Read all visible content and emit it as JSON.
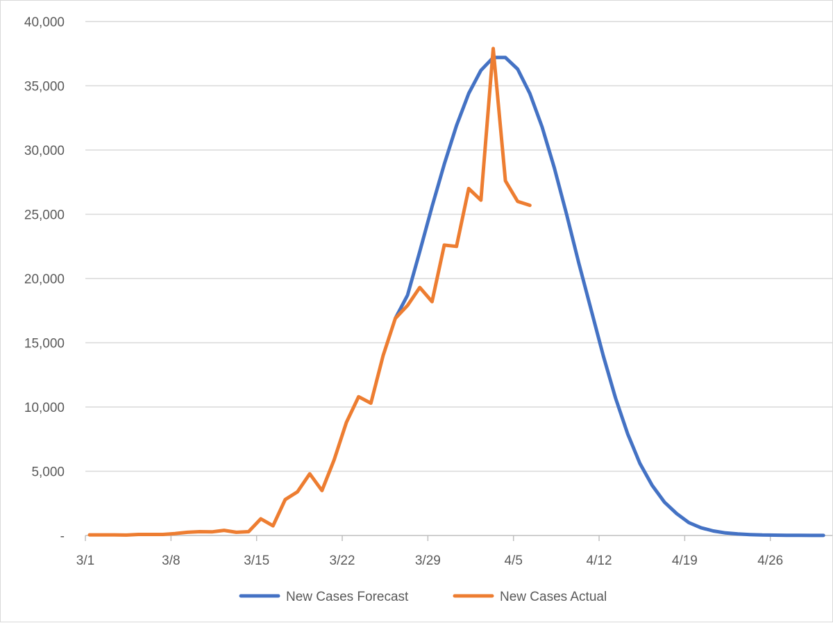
{
  "chart_data": {
    "type": "line",
    "title": "",
    "xlabel": "",
    "ylabel": "",
    "x_start": "3/1",
    "x_tick_labels": [
      "3/1",
      "3/8",
      "3/15",
      "3/22",
      "3/29",
      "4/5",
      "4/12",
      "4/19",
      "4/26"
    ],
    "y_tick_labels": [
      "-",
      "5,000",
      "10,000",
      "15,000",
      "20,000",
      "25,000",
      "30,000",
      "35,000",
      "40,000"
    ],
    "y_ticks": [
      0,
      5000,
      10000,
      15000,
      20000,
      25000,
      30000,
      35000,
      40000
    ],
    "ylim": [
      0,
      40000
    ],
    "grid": "horizontal",
    "legend_position": "bottom",
    "series": [
      {
        "name": "New Cases Forecast",
        "color": "#4472c4",
        "x": [
          "3/26",
          "3/27",
          "3/28",
          "3/29",
          "3/30",
          "3/31",
          "4/1",
          "4/2",
          "4/3",
          "4/4",
          "4/5",
          "4/6",
          "4/7",
          "4/8",
          "4/9",
          "4/10",
          "4/11",
          "4/12",
          "4/13",
          "4/14",
          "4/15",
          "4/16",
          "4/17",
          "4/18",
          "4/19",
          "4/20",
          "4/21",
          "4/22",
          "4/23",
          "4/24",
          "4/25",
          "4/26",
          "4/27",
          "4/28",
          "4/29",
          "4/30"
        ],
        "values": [
          16900,
          18700,
          22100,
          25600,
          28900,
          31900,
          34400,
          36200,
          37200,
          37200,
          36300,
          34400,
          31800,
          28600,
          25000,
          21200,
          17600,
          14000,
          10700,
          7900,
          5600,
          3900,
          2600,
          1700,
          1000,
          600,
          350,
          200,
          120,
          70,
          40,
          25,
          15,
          10,
          5,
          5
        ]
      },
      {
        "name": "New Cases Actual",
        "color": "#ed7d31",
        "x": [
          "3/1",
          "3/2",
          "3/3",
          "3/4",
          "3/5",
          "3/6",
          "3/7",
          "3/8",
          "3/9",
          "3/10",
          "3/11",
          "3/12",
          "3/13",
          "3/14",
          "3/15",
          "3/16",
          "3/17",
          "3/18",
          "3/19",
          "3/20",
          "3/21",
          "3/22",
          "3/23",
          "3/24",
          "3/25",
          "3/26",
          "3/27",
          "3/28",
          "3/29",
          "3/30",
          "3/31",
          "4/1",
          "4/2",
          "4/3",
          "4/4",
          "4/5",
          "4/6"
        ],
        "values": [
          50,
          50,
          50,
          30,
          80,
          80,
          80,
          150,
          250,
          300,
          280,
          400,
          250,
          300,
          1300,
          750,
          2800,
          3400,
          4800,
          3500,
          5900,
          8800,
          10800,
          10300,
          14000,
          16900,
          17900,
          19300,
          18200,
          22600,
          22500,
          27000,
          26100,
          37900,
          27600,
          26000,
          25700
        ]
      }
    ]
  }
}
